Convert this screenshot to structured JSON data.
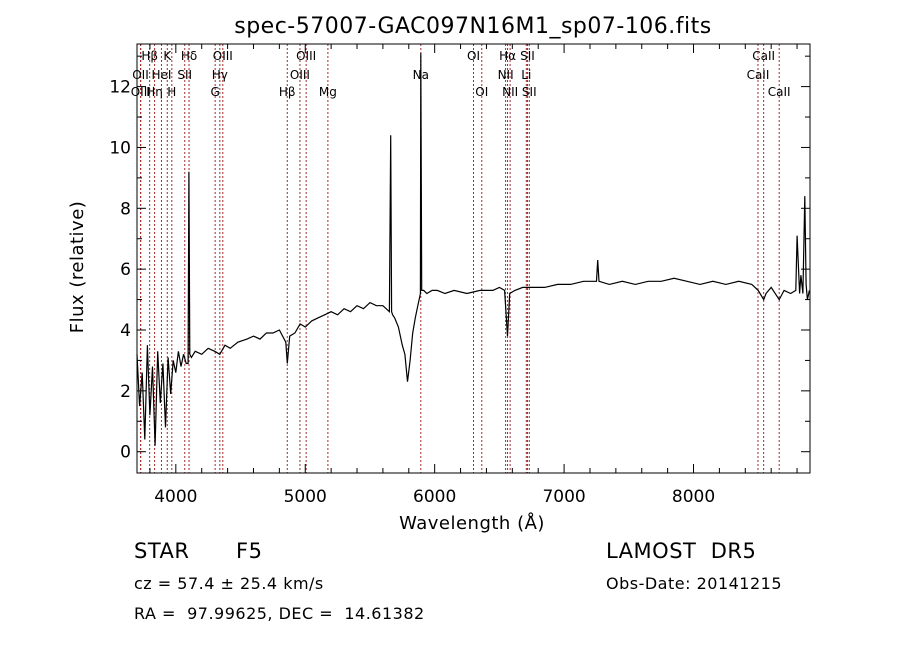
{
  "chart_data": {
    "type": "line",
    "title": "spec-57007-GAC097N16M1_sp07-106.fits",
    "xlabel": "Wavelength (Å)",
    "ylabel": "Flux (relative)",
    "xlim": [
      3700,
      8900
    ],
    "ylim": [
      -0.7,
      13.4
    ],
    "xticks": [
      4000,
      5000,
      6000,
      7000,
      8000
    ],
    "yticks": [
      0,
      2,
      4,
      6,
      8,
      10,
      12
    ],
    "grid": false,
    "series": [
      {
        "x": [
          3700,
          3720,
          3740,
          3760,
          3780,
          3800,
          3820,
          3840,
          3860,
          3880,
          3900,
          3920,
          3940,
          3960,
          3980,
          4000,
          4020,
          4040,
          4060,
          4080,
          4095,
          4101,
          4108,
          4120,
          4150,
          4200,
          4250,
          4300,
          4340,
          4380,
          4420,
          4480,
          4550,
          4600,
          4650,
          4700,
          4750,
          4800,
          4850,
          4861,
          4880,
          4920,
          4960,
          5000,
          5050,
          5100,
          5150,
          5200,
          5250,
          5300,
          5350,
          5400,
          5450,
          5500,
          5550,
          5600,
          5650,
          5660,
          5667,
          5675,
          5690,
          5720,
          5750,
          5770,
          5790,
          5810,
          5830,
          5850,
          5870,
          5885,
          5890,
          5893,
          5900,
          5915,
          5940,
          5980,
          6020,
          6080,
          6150,
          6250,
          6350,
          6450,
          6500,
          6540,
          6563,
          6580,
          6620,
          6680,
          6750,
          6850,
          6950,
          7050,
          7150,
          7250,
          7260,
          7270,
          7350,
          7450,
          7550,
          7650,
          7750,
          7850,
          7950,
          8050,
          8150,
          8250,
          8350,
          8450,
          8500,
          8542,
          8560,
          8600,
          8662,
          8700,
          8750,
          8790,
          8800,
          8820,
          8830,
          8845,
          8860,
          8870,
          8880,
          8895
        ],
        "values": [
          3.2,
          1.5,
          2.6,
          0.4,
          3.5,
          1.2,
          2.8,
          0.2,
          3.3,
          1.6,
          2.9,
          0.8,
          3.1,
          1.9,
          3.0,
          2.6,
          3.3,
          2.8,
          3.2,
          2.9,
          2.9,
          9.2,
          3.2,
          3.1,
          3.3,
          3.2,
          3.4,
          3.3,
          3.2,
          3.5,
          3.4,
          3.6,
          3.7,
          3.8,
          3.7,
          3.9,
          3.9,
          4.0,
          3.6,
          2.9,
          3.8,
          3.9,
          4.2,
          4.1,
          4.3,
          4.4,
          4.5,
          4.6,
          4.5,
          4.7,
          4.6,
          4.8,
          4.7,
          4.9,
          4.8,
          4.8,
          4.6,
          10.4,
          4.6,
          4.5,
          4.4,
          4.1,
          3.5,
          3.2,
          2.3,
          3.0,
          3.9,
          4.4,
          4.8,
          5.1,
          5.2,
          13.1,
          5.3,
          5.3,
          5.2,
          5.3,
          5.3,
          5.2,
          5.3,
          5.2,
          5.3,
          5.3,
          5.4,
          5.3,
          3.8,
          5.2,
          5.3,
          5.4,
          5.4,
          5.4,
          5.5,
          5.5,
          5.6,
          5.6,
          6.3,
          5.6,
          5.5,
          5.6,
          5.5,
          5.6,
          5.6,
          5.7,
          5.6,
          5.5,
          5.6,
          5.5,
          5.6,
          5.5,
          5.3,
          5.0,
          5.2,
          5.4,
          5.0,
          5.3,
          5.2,
          5.3,
          7.1,
          5.2,
          5.8,
          5.2,
          8.4,
          5.5,
          5.0,
          5.3
        ]
      }
    ],
    "lines_top": [
      {
        "label": "Hβ",
        "x": 3798,
        "row": 0
      },
      {
        "label": "OII",
        "x": 3727,
        "row": 1
      },
      {
        "label": "OIII",
        "x": 3729,
        "row": 2
      },
      {
        "label": "K",
        "x": 3934,
        "row": 0
      },
      {
        "label": "Hη",
        "x": 3836,
        "row": 2
      },
      {
        "label": "HeI",
        "x": 3889,
        "row": 1
      },
      {
        "label": "H",
        "x": 3969,
        "row": 2
      },
      {
        "label": "SII",
        "x": 4069,
        "row": 1
      },
      {
        "label": "Hδ",
        "x": 4102,
        "row": 0
      },
      {
        "label": "OIII",
        "x": 4363,
        "row": 0
      },
      {
        "label": "Hγ",
        "x": 4340,
        "row": 1
      },
      {
        "label": "G",
        "x": 4304,
        "row": 2
      },
      {
        "label": "Hβ",
        "x": 4861,
        "row": 2
      },
      {
        "label": "OIII",
        "x": 4959,
        "row": 1
      },
      {
        "label": "OIII",
        "x": 5007,
        "row": 0
      },
      {
        "label": "Mg",
        "x": 5175,
        "row": 2
      },
      {
        "label": "Na",
        "x": 5893,
        "row": 1
      },
      {
        "label": "OI",
        "x": 6300,
        "row": 0
      },
      {
        "label": "OI",
        "x": 6364,
        "row": 2
      },
      {
        "label": "Hα",
        "x": 6563,
        "row": 0
      },
      {
        "label": "NII",
        "x": 6548,
        "row": 1
      },
      {
        "label": "NII",
        "x": 6583,
        "row": 2
      },
      {
        "label": "SII",
        "x": 6717,
        "row": 0
      },
      {
        "label": "Li",
        "x": 6708,
        "row": 1
      },
      {
        "label": "SII",
        "x": 6731,
        "row": 2
      },
      {
        "label": "CaII",
        "x": 8542,
        "row": 0
      },
      {
        "label": "CaII",
        "x": 8498,
        "row": 1
      },
      {
        "label": "CaII",
        "x": 8662,
        "row": 2
      }
    ]
  },
  "info": {
    "class": "STAR",
    "subclass": "F5",
    "survey": "LAMOST  DR5",
    "cz": "cz = 57.4 ± 25.4 km/s",
    "obs_date": "Obs-Date: 20141215",
    "coords": "RA =  97.99625, DEC =  14.61382"
  },
  "colors": {
    "spectrum": "#000000",
    "line_markers": "#a52a2a",
    "axes": "#000000"
  }
}
